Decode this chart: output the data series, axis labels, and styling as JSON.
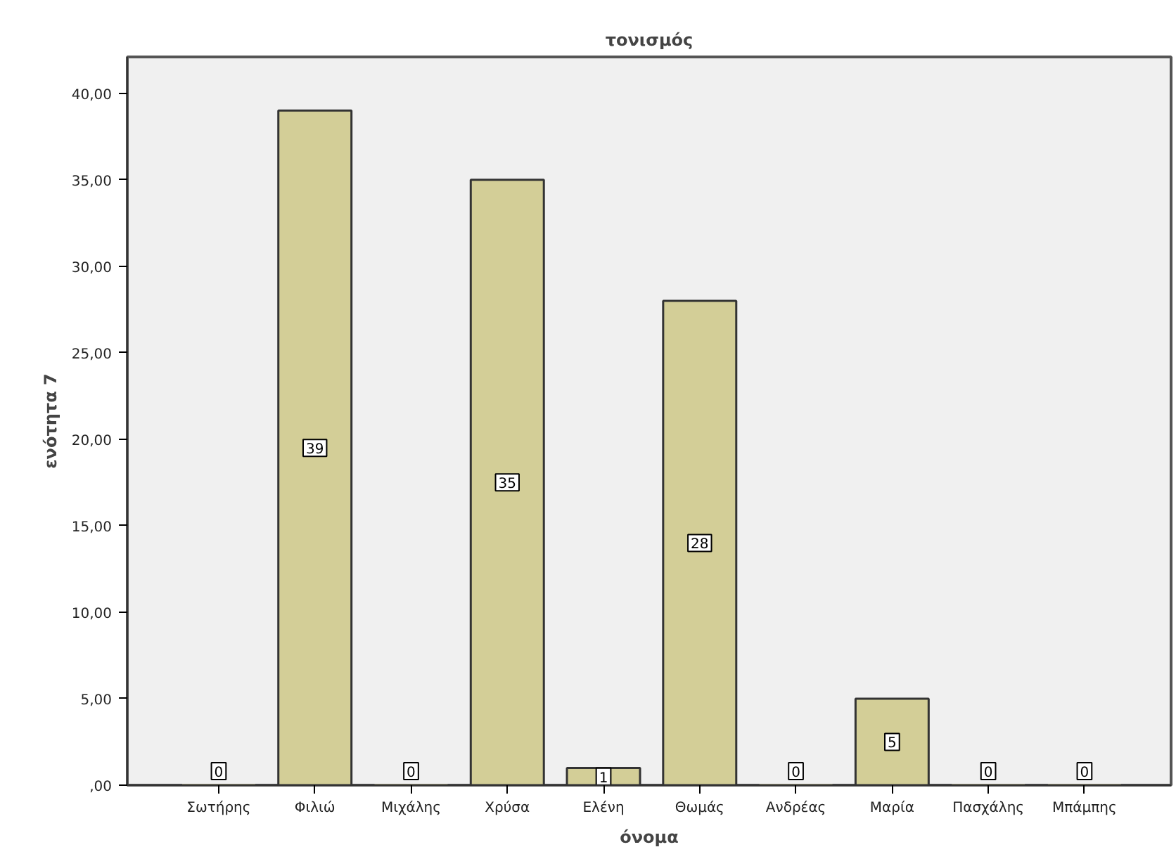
{
  "chart_data": {
    "type": "bar",
    "title": "τονισμός",
    "xlabel": "όνομα",
    "ylabel": "ενότητα 7",
    "categories": [
      "Σωτήρης",
      "Φιλιώ",
      "Μιχάλης",
      "Χρύσα",
      "Ελένη",
      "Θωμάς",
      "Ανδρέας",
      "Μαρία",
      "Πασχάλης",
      "Μπάμπης"
    ],
    "values": [
      0,
      39,
      0,
      35,
      1,
      28,
      0,
      5,
      0,
      0
    ],
    "color": "#d3ce97",
    "ylim": [
      0,
      42.1
    ],
    "yticks": [
      {
        "value": 0,
        "label": ",00"
      },
      {
        "value": 5,
        "label": "5,00"
      },
      {
        "value": 10,
        "label": "10,00"
      },
      {
        "value": 15,
        "label": "15,00"
      },
      {
        "value": 20,
        "label": "20,00"
      },
      {
        "value": 25,
        "label": "25,00"
      },
      {
        "value": 30,
        "label": "30,00"
      },
      {
        "value": 35,
        "label": "35,00"
      },
      {
        "value": 40,
        "label": "40,00"
      }
    ],
    "data_labels": true,
    "grid": false
  }
}
